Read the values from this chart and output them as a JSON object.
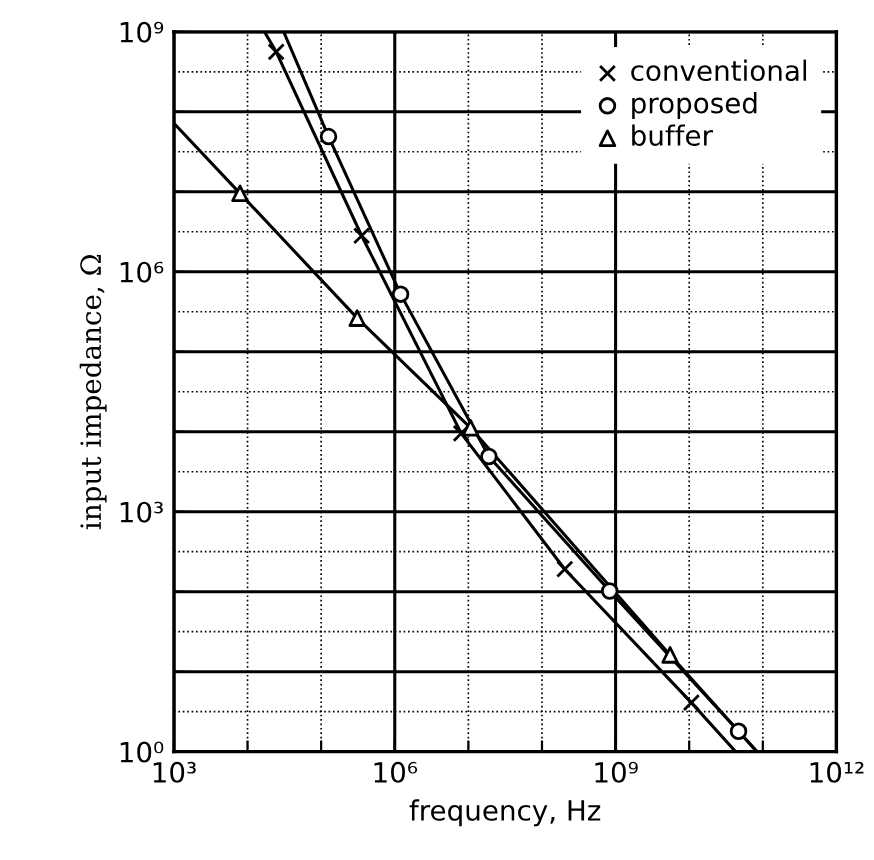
{
  "chart_data": {
    "type": "line",
    "xlabel": "frequency, Hz",
    "ylabel": "input impedance, Ω",
    "log": "xy",
    "grid": true,
    "legend": "top right",
    "xlim": [
      1000,
      1000000000000
    ],
    "ylim": [
      1,
      1000000000
    ],
    "xticks": [
      {
        "value": 1000,
        "label": "10³"
      },
      {
        "value": 10000,
        "label": null
      },
      {
        "value": 100000,
        "label": null
      },
      {
        "value": 1000000,
        "label": "10⁶"
      },
      {
        "value": 10000000,
        "label": null
      },
      {
        "value": 100000000,
        "label": null
      },
      {
        "value": 1000000000,
        "label": "10⁹"
      },
      {
        "value": 10000000000,
        "label": null
      },
      {
        "value": 100000000000,
        "label": null
      },
      {
        "value": 1000000000000,
        "label": "10¹²"
      }
    ],
    "yticks": [
      {
        "value": 1,
        "label": "10⁰"
      },
      {
        "value": 10,
        "label": null
      },
      {
        "value": 100,
        "label": null
      },
      {
        "value": 1000,
        "label": "10³"
      },
      {
        "value": 10000,
        "label": null
      },
      {
        "value": 100000,
        "label": null
      },
      {
        "value": 1000000,
        "label": "10⁶"
      },
      {
        "value": 10000000,
        "label": null
      },
      {
        "value": 100000000,
        "label": null
      },
      {
        "value": 1000000000,
        "label": "10⁹"
      }
    ],
    "series": [
      {
        "color": "#000000",
        "marker": "none",
        "x": [
          17000,
          24500,
          355000,
          8000000,
          204000000,
          10700000000,
          42700000000
        ],
        "values": [
          1000000000,
          562000000,
          2820000,
          9550,
          191,
          4.1,
          1
        ]
      },
      {
        "color": "#000000",
        "marker": "none",
        "x": [
          31000,
          126000,
          1200000,
          19000000,
          832000000,
          46800000000,
          83200000000
        ],
        "values": [
          1000000000,
          49000000,
          525000,
          4900,
          102,
          1.8,
          1
        ]
      },
      {
        "color": "#000000",
        "marker": "none",
        "x": [
          1000,
          7900,
          309000,
          10700000,
          5500000000,
          83200000000
        ],
        "values": [
          72000000,
          9550000,
          263000,
          11200,
          16.2,
          1
        ]
      },
      {
        "type": "scatter",
        "name": "conventional",
        "color": "#000000",
        "marker": "cross",
        "x": [
          24500,
          355000,
          8000000,
          204000000,
          10700000000
        ],
        "values": [
          562000000,
          2820000,
          9550,
          191,
          4.1
        ]
      },
      {
        "type": "scatter",
        "name": "proposed",
        "color": "#000000",
        "marker": "circle",
        "x": [
          126000,
          1200000,
          19000000,
          832000000,
          46800000000
        ],
        "values": [
          49000000,
          525000,
          4900,
          102,
          1.8
        ]
      },
      {
        "type": "scatter",
        "name": "buffer",
        "color": "#000000",
        "marker": "triangle",
        "x": [
          7900,
          309000,
          10700000,
          5500000000
        ],
        "values": [
          9550000,
          263000,
          11200,
          16.2
        ]
      }
    ]
  }
}
